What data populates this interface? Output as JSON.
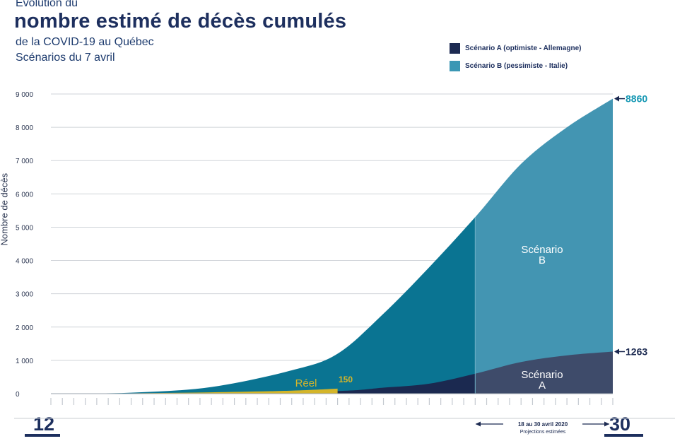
{
  "header": {
    "line1": "Évolution du",
    "line2": "nombre estimé de décès cumulés",
    "line3": "de la COVID-19 au Québec",
    "line4": "Scénarios du 7 avril"
  },
  "legend": [
    {
      "label": "Scénario A (optimiste - Allemagne)",
      "color": "#1d2a52"
    },
    {
      "label": "Scénario B (pessimiste - Italie)",
      "color": "#3b97b4"
    }
  ],
  "colors": {
    "scenario_b_dark": "#0a7492",
    "scenario_b_light": "#4395b2",
    "scenario_a_dark": "#1b2950",
    "scenario_a_light": "#3e4b6a",
    "reel": "#d4b52a",
    "grid": "#cfd3d8",
    "accent_text": "#1497b3"
  },
  "chart_data": {
    "type": "area",
    "ylabel": "Nombre de décès",
    "ylim": [
      0,
      9000
    ],
    "y_ticks": [
      "0",
      "1 000",
      "2 000",
      "3 000",
      "4 000",
      "5 000",
      "6 000",
      "7 000",
      "8 000",
      "9 000"
    ],
    "x_range": [
      "12 mars",
      "30 avril"
    ],
    "x_start_label": "12",
    "x_end_label": "30",
    "projection_label": "18 au 30 avril 2020",
    "projection_sublabel": "Projections estimées",
    "series": [
      {
        "name": "Scénario B (pessimiste - Italie)",
        "x": [
          "12 mars",
          "19 mars",
          "26 mars",
          "2 avr",
          "6 avr",
          "10 avr",
          "14 avr",
          "18 avr",
          "22 avr",
          "26 avr",
          "30 avr"
        ],
        "values": [
          5,
          30,
          200,
          700,
          1200,
          2400,
          3800,
          5300,
          6900,
          8000,
          8860
        ]
      },
      {
        "name": "Scénario A (optimiste - Allemagne)",
        "x": [
          "12 mars",
          "26 mars",
          "6 avr",
          "10 avr",
          "14 avr",
          "18 avr",
          "22 avr",
          "26 avr",
          "30 avr"
        ],
        "values": [
          0,
          15,
          80,
          180,
          300,
          600,
          950,
          1150,
          1263
        ]
      },
      {
        "name": "Réel",
        "x": [
          "12 mars",
          "19 mars",
          "26 mars",
          "2 avr",
          "6 avr"
        ],
        "values": [
          0,
          10,
          40,
          90,
          150
        ]
      }
    ],
    "annotations": {
      "reel_label": "Réel",
      "reel_value": "150",
      "b_end_value": "8860",
      "a_end_value": "1263",
      "area_b_label_1": "Scénario",
      "area_b_label_2": "B",
      "area_a_label_1": "Scénario",
      "area_a_label_2": "A"
    }
  }
}
